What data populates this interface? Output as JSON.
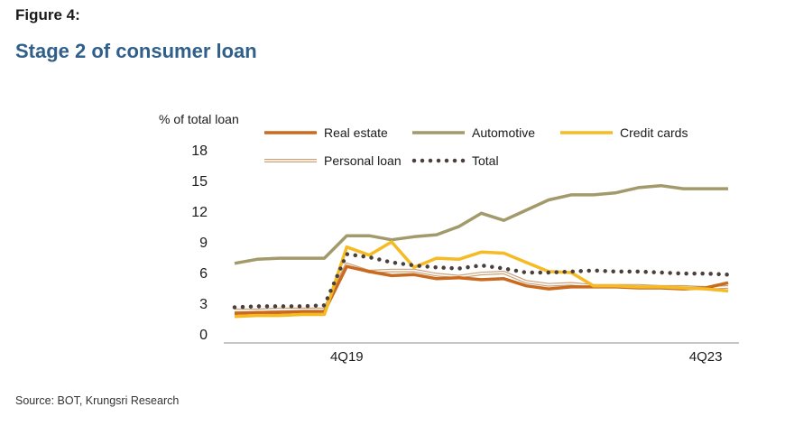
{
  "figure_label": "Figure 4:",
  "title": "Stage 2 of consumer loan",
  "source": "Source: BOT, Krungsri Research",
  "chart_data": {
    "type": "line",
    "ylabel": "% of total loan",
    "ylim": [
      0,
      18
    ],
    "yticks": [
      0,
      3,
      6,
      9,
      12,
      15,
      18
    ],
    "x_tick_labels": [
      {
        "index": 5,
        "label": "4Q19"
      },
      {
        "index": 21,
        "label": "4Q23"
      }
    ],
    "x_count": 23,
    "series": [
      {
        "name": "Real estate",
        "color": "#c96a1e",
        "style": "solid",
        "values": [
          2.0,
          2.1,
          2.1,
          2.2,
          2.2,
          6.6,
          6.1,
          5.7,
          5.8,
          5.4,
          5.5,
          5.3,
          5.4,
          4.7,
          4.4,
          4.6,
          4.6,
          4.6,
          4.5,
          4.5,
          4.4,
          4.5,
          5.0
        ]
      },
      {
        "name": "Automotive",
        "color": "#a29a6a",
        "style": "solid",
        "values": [
          6.9,
          7.3,
          7.4,
          7.4,
          7.4,
          9.6,
          9.6,
          9.2,
          9.5,
          9.7,
          10.5,
          11.8,
          11.1,
          12.1,
          13.1,
          13.6,
          13.6,
          13.8,
          14.3,
          14.5,
          14.2,
          14.2,
          14.2
        ]
      },
      {
        "name": "Credit cards",
        "color": "#f5bb24",
        "style": "solid",
        "values": [
          1.7,
          1.8,
          1.8,
          1.9,
          1.9,
          8.5,
          7.7,
          9.0,
          6.5,
          7.4,
          7.3,
          8.0,
          7.9,
          7.0,
          6.1,
          6.0,
          4.7,
          4.7,
          4.6,
          4.6,
          4.5,
          4.4,
          4.2
        ]
      },
      {
        "name": "Personal loan",
        "color": "#c9a27a",
        "style": "double",
        "values": [
          2.3,
          2.3,
          2.4,
          2.4,
          2.4,
          6.8,
          6.1,
          6.2,
          6.2,
          5.8,
          5.6,
          5.9,
          6.0,
          5.1,
          4.8,
          4.9,
          4.7,
          4.7,
          4.7,
          4.6,
          4.6,
          4.5,
          4.6
        ]
      },
      {
        "name": "Total",
        "color": "#4a3f3a",
        "style": "dotted",
        "values": [
          2.6,
          2.7,
          2.7,
          2.7,
          2.8,
          7.8,
          7.5,
          7.0,
          6.7,
          6.5,
          6.4,
          6.7,
          6.4,
          6.0,
          6.0,
          6.1,
          6.2,
          6.1,
          6.1,
          6.0,
          5.9,
          5.9,
          5.8
        ]
      }
    ],
    "legend_position": "top"
  }
}
